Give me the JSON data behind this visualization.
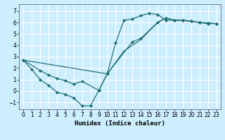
{
  "title": "",
  "xlabel": "Humidex (Indice chaleur)",
  "bg_color": "#cceeff",
  "grid_color": "#ffffff",
  "line_color": "#1a6b6b",
  "xlim": [
    -0.5,
    23.5
  ],
  "ylim": [
    -1.6,
    7.6
  ],
  "xticks": [
    0,
    1,
    2,
    3,
    4,
    5,
    6,
    7,
    8,
    9,
    10,
    11,
    12,
    13,
    14,
    15,
    16,
    17,
    18,
    19,
    20,
    21,
    22,
    23
  ],
  "yticks": [
    -1,
    0,
    1,
    2,
    3,
    4,
    5,
    6,
    7
  ],
  "series1_x": [
    0,
    1,
    2,
    3,
    4,
    5,
    6,
    7,
    8,
    9,
    10,
    11,
    12,
    13,
    14,
    15,
    16,
    17,
    18,
    19,
    20,
    21,
    22,
    23
  ],
  "series1_y": [
    2.7,
    1.9,
    1.0,
    0.5,
    -0.1,
    -0.3,
    -0.6,
    -1.3,
    -1.3,
    0.05,
    1.5,
    4.2,
    6.2,
    6.3,
    6.6,
    6.8,
    6.7,
    6.2,
    6.2,
    6.2,
    6.1,
    6.0,
    5.9,
    5.9
  ],
  "series2_x": [
    0,
    2,
    3,
    4,
    5,
    6,
    7,
    9,
    10,
    13,
    14,
    16,
    17,
    18,
    19,
    20,
    21,
    22,
    23
  ],
  "series2_y": [
    2.7,
    1.8,
    1.4,
    1.1,
    0.9,
    0.6,
    0.85,
    0.05,
    1.5,
    4.3,
    4.6,
    6.0,
    6.4,
    6.2,
    6.2,
    6.1,
    6.0,
    5.95,
    5.9
  ],
  "series3_x": [
    0,
    10,
    12,
    14,
    16,
    17,
    18,
    19,
    20,
    21,
    22,
    23
  ],
  "series3_y": [
    2.7,
    1.5,
    3.5,
    4.5,
    6.0,
    6.4,
    6.2,
    6.2,
    6.1,
    6.0,
    5.95,
    5.9
  ]
}
